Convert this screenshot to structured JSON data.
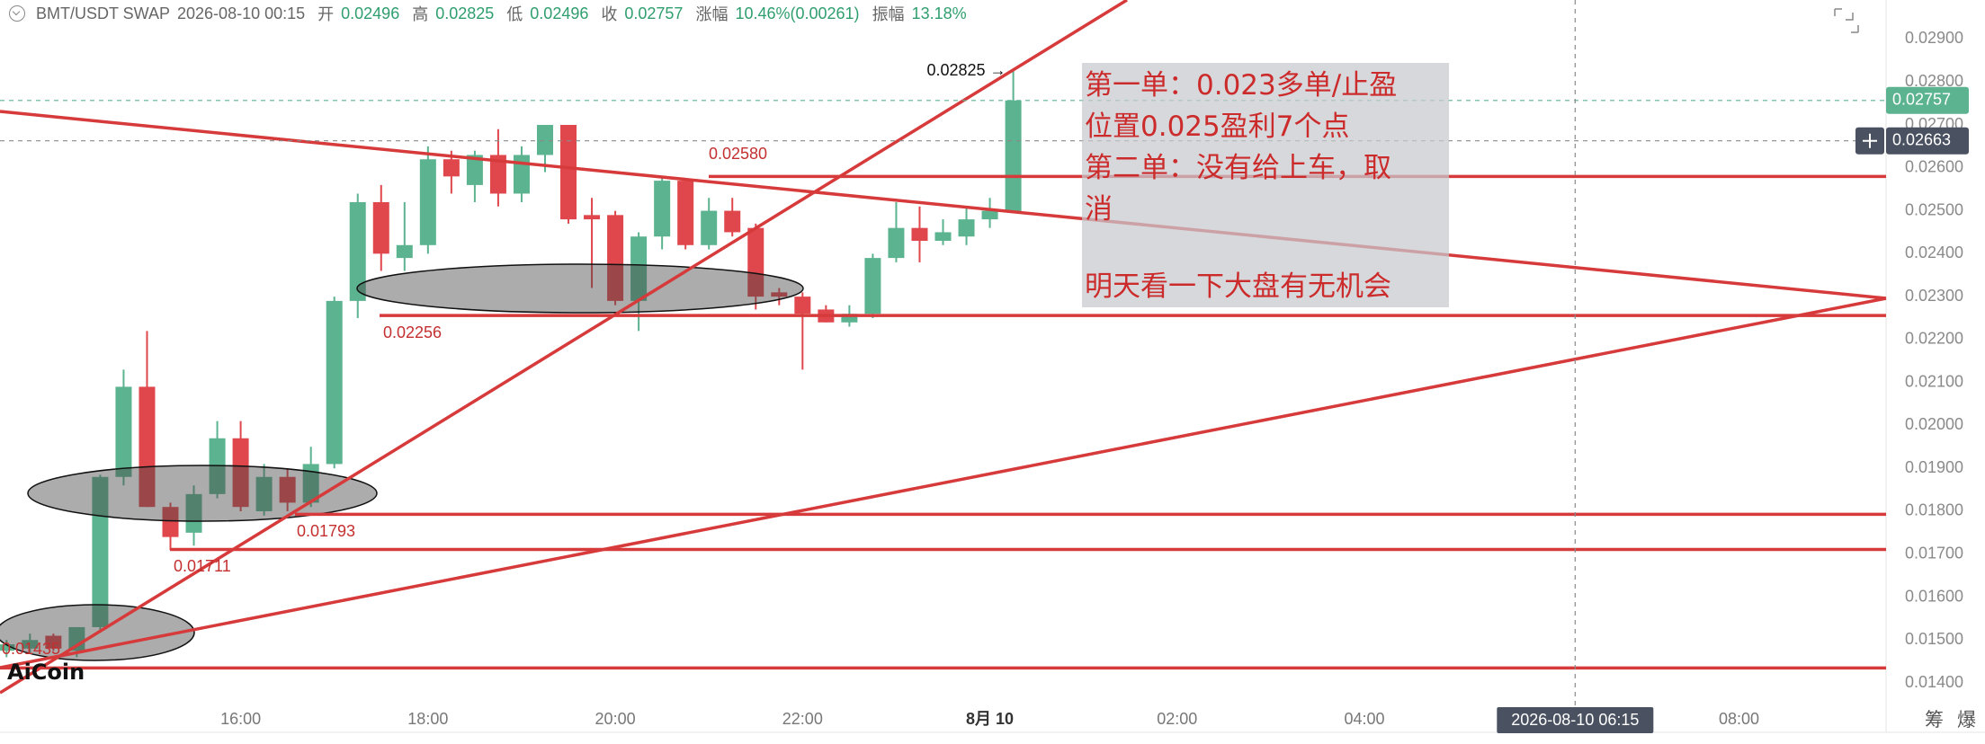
{
  "header": {
    "symbol": "BMT/USDT SWAP",
    "time": "2026-08-10 00:15",
    "items": [
      {
        "label": "开",
        "value": "0.02496"
      },
      {
        "label": "高",
        "value": "0.02825"
      },
      {
        "label": "低",
        "value": "0.02496"
      },
      {
        "label": "收",
        "value": "0.02757"
      },
      {
        "label": "涨幅",
        "value": "10.46%(0.00261)"
      },
      {
        "label": "振幅",
        "value": "13.18%"
      }
    ]
  },
  "note": [
    "第一单：0.023多单/止盈",
    "位置0.025盈利7个点",
    "第二单：没有给上车，取",
    "消",
    "明天看一下大盘有无机会"
  ],
  "logo": "AiCoin",
  "side_buttons": [
    "筹",
    "爆"
  ],
  "chart_data": {
    "type": "candlestick",
    "up_color": "#5bb38f",
    "down_color": "#e0474c",
    "x": [
      13.5,
      13.75,
      14,
      14.25,
      14.5,
      14.75,
      15,
      15.25,
      15.5,
      15.75,
      16,
      16.25,
      16.5,
      16.75,
      17,
      17.25,
      17.5,
      17.75,
      18,
      18.25,
      18.5,
      18.75,
      19,
      19.25,
      19.5,
      19.75,
      20,
      20.25,
      20.5,
      20.75,
      21,
      21.25,
      21.5,
      21.75,
      22,
      22.25,
      22.5,
      22.75,
      23,
      23.25,
      23.5,
      23.75,
      24,
      24.25
    ],
    "open": [
      0.01475,
      0.0148,
      0.0151,
      0.01475,
      0.0153,
      0.0188,
      0.0209,
      0.0181,
      0.0175,
      0.0184,
      0.0197,
      0.018,
      0.0188,
      0.0182,
      0.0191,
      0.0229,
      0.0252,
      0.0239,
      0.0242,
      0.0262,
      0.0256,
      0.0263,
      0.0254,
      0.0263,
      0.027,
      0.0249,
      0.0249,
      0.0229,
      0.0244,
      0.0257,
      0.0242,
      0.025,
      0.0246,
      0.0231,
      0.023,
      0.0227,
      0.0224,
      0.0226,
      0.0239,
      0.0246,
      0.0243,
      0.0244,
      0.0248,
      0.02496
    ],
    "high": [
      0.015,
      0.01515,
      0.01515,
      0.0153,
      0.01885,
      0.0213,
      0.0222,
      0.0182,
      0.0186,
      0.0201,
      0.0201,
      0.0191,
      0.019,
      0.0195,
      0.023,
      0.0254,
      0.0256,
      0.0252,
      0.0265,
      0.0264,
      0.0264,
      0.0269,
      0.0265,
      0.027,
      0.027,
      0.0253,
      0.025,
      0.0245,
      0.0258,
      0.0257,
      0.0253,
      0.0253,
      0.0247,
      0.0232,
      0.0231,
      0.0228,
      0.0228,
      0.024,
      0.0252,
      0.0251,
      0.0248,
      0.0251,
      0.0253,
      0.02825
    ],
    "low": [
      0.0146,
      0.0147,
      0.01475,
      0.0146,
      0.0152,
      0.0186,
      0.0181,
      0.0171,
      0.0172,
      0.0183,
      0.018,
      0.0179,
      0.018,
      0.0181,
      0.019,
      0.0225,
      0.0236,
      0.0236,
      0.024,
      0.0254,
      0.0252,
      0.0251,
      0.0252,
      0.0259,
      0.0247,
      0.0232,
      0.0228,
      0.0222,
      0.0241,
      0.0241,
      0.0241,
      0.0244,
      0.0227,
      0.0228,
      0.0213,
      0.0224,
      0.0223,
      0.0225,
      0.0238,
      0.0238,
      0.0242,
      0.0242,
      0.0246,
      0.02496
    ],
    "close": [
      0.0149,
      0.015,
      0.0148,
      0.0153,
      0.0188,
      0.0209,
      0.0181,
      0.0174,
      0.0184,
      0.0197,
      0.0181,
      0.0188,
      0.0182,
      0.0191,
      0.0229,
      0.0252,
      0.024,
      0.0242,
      0.0262,
      0.0258,
      0.0263,
      0.0254,
      0.0263,
      0.027,
      0.0248,
      0.0248,
      0.0229,
      0.0244,
      0.0257,
      0.0242,
      0.025,
      0.0245,
      0.023,
      0.023,
      0.0226,
      0.0224,
      0.0226,
      0.0239,
      0.0246,
      0.0243,
      0.0245,
      0.0248,
      0.025,
      0.02757
    ],
    "xlim": [
      13.43,
      33.57
    ],
    "xticks": [
      {
        "value": 16,
        "label": "16:00"
      },
      {
        "value": 18,
        "label": "18:00"
      },
      {
        "value": 20,
        "label": "20:00"
      },
      {
        "value": 22,
        "label": "22:00"
      },
      {
        "value": 24,
        "label": "8月 10"
      },
      {
        "value": 26,
        "label": "02:00"
      },
      {
        "value": 28,
        "label": "04:00"
      },
      {
        "value": 32,
        "label": "08:00"
      }
    ],
    "ylim": [
      0.01285,
      0.02991
    ],
    "yticks": [
      {
        "value": 0.014,
        "label": "0.01400"
      },
      {
        "value": 0.015,
        "label": "0.01500"
      },
      {
        "value": 0.016,
        "label": "0.01600"
      },
      {
        "value": 0.017,
        "label": "0.01700"
      },
      {
        "value": 0.018,
        "label": "0.01800"
      },
      {
        "value": 0.019,
        "label": "0.01900"
      },
      {
        "value": 0.02,
        "label": "0.02000"
      },
      {
        "value": 0.021,
        "label": "0.02100"
      },
      {
        "value": 0.022,
        "label": "0.02200"
      },
      {
        "value": 0.023,
        "label": "0.02300"
      },
      {
        "value": 0.024,
        "label": "0.02400"
      },
      {
        "value": 0.025,
        "label": "0.02500"
      },
      {
        "value": 0.026,
        "label": "0.02600"
      },
      {
        "value": 0.027,
        "label": "0.02700"
      },
      {
        "value": 0.028,
        "label": "0.02800"
      },
      {
        "value": 0.029,
        "label": "0.02900"
      }
    ],
    "grid": false,
    "price_lines": [
      {
        "value": 0.0258,
        "label": "0.02580"
      },
      {
        "value": 0.02256,
        "label": "0.02256"
      },
      {
        "value": 0.01793,
        "label": "0.01793"
      },
      {
        "value": 0.01711,
        "label": "0.01711"
      },
      {
        "value": 0.01435,
        "label": "0.01435"
      }
    ],
    "line_color": "#d63a3a",
    "last_price": {
      "value": 0.02757,
      "label": "0.02757"
    },
    "high_marker": {
      "value": 0.02825,
      "label": "0.02825 →"
    },
    "crosshair": {
      "price": {
        "value": 0.02663,
        "label": "0.02663"
      },
      "time": {
        "value": 30.25,
        "label": "2026-08-10 06:15"
      }
    }
  }
}
